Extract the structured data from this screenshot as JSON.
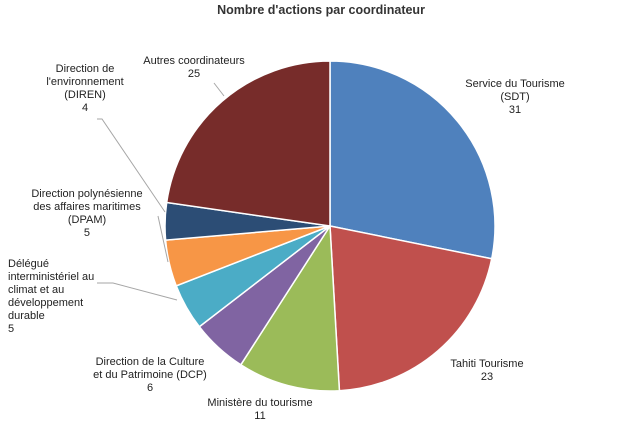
{
  "chart_data": {
    "type": "pie",
    "title": "Nombre d'actions par coordinateur",
    "slices": [
      {
        "name_lines": [
          "Service du Tourisme",
          "(SDT)"
        ],
        "value": 31,
        "value_label": "31",
        "color": "#4F81BD"
      },
      {
        "name_lines": [
          "Tahiti Tourisme"
        ],
        "value": 23,
        "value_label": "23",
        "color": "#C0504D"
      },
      {
        "name_lines": [
          "Ministère du tourisme"
        ],
        "value": 11,
        "value_label": "11",
        "color": "#9BBB59"
      },
      {
        "name_lines": [
          "Direction de la Culture",
          "et du Patrimoine (DCP)"
        ],
        "value": 6,
        "value_label": "6",
        "color": "#8064A2"
      },
      {
        "name_lines": [
          "Délégué",
          "interministériel au",
          "climat et au",
          "développement",
          "durable"
        ],
        "value": 5,
        "value_label": "5",
        "color": "#4BACC6"
      },
      {
        "name_lines": [
          "Direction polynésienne",
          "des affaires maritimes",
          "(DPAM)"
        ],
        "value": 5,
        "value_label": "5",
        "color": "#F79646"
      },
      {
        "name_lines": [
          "Direction de",
          "l'environnement",
          "(DIREN)"
        ],
        "value": 4,
        "value_label": "4",
        "color": "#2C4D75"
      },
      {
        "name_lines": [
          "Autres coordinateurs"
        ],
        "value": 25,
        "value_label": "25",
        "color": "#772C2A"
      }
    ]
  }
}
